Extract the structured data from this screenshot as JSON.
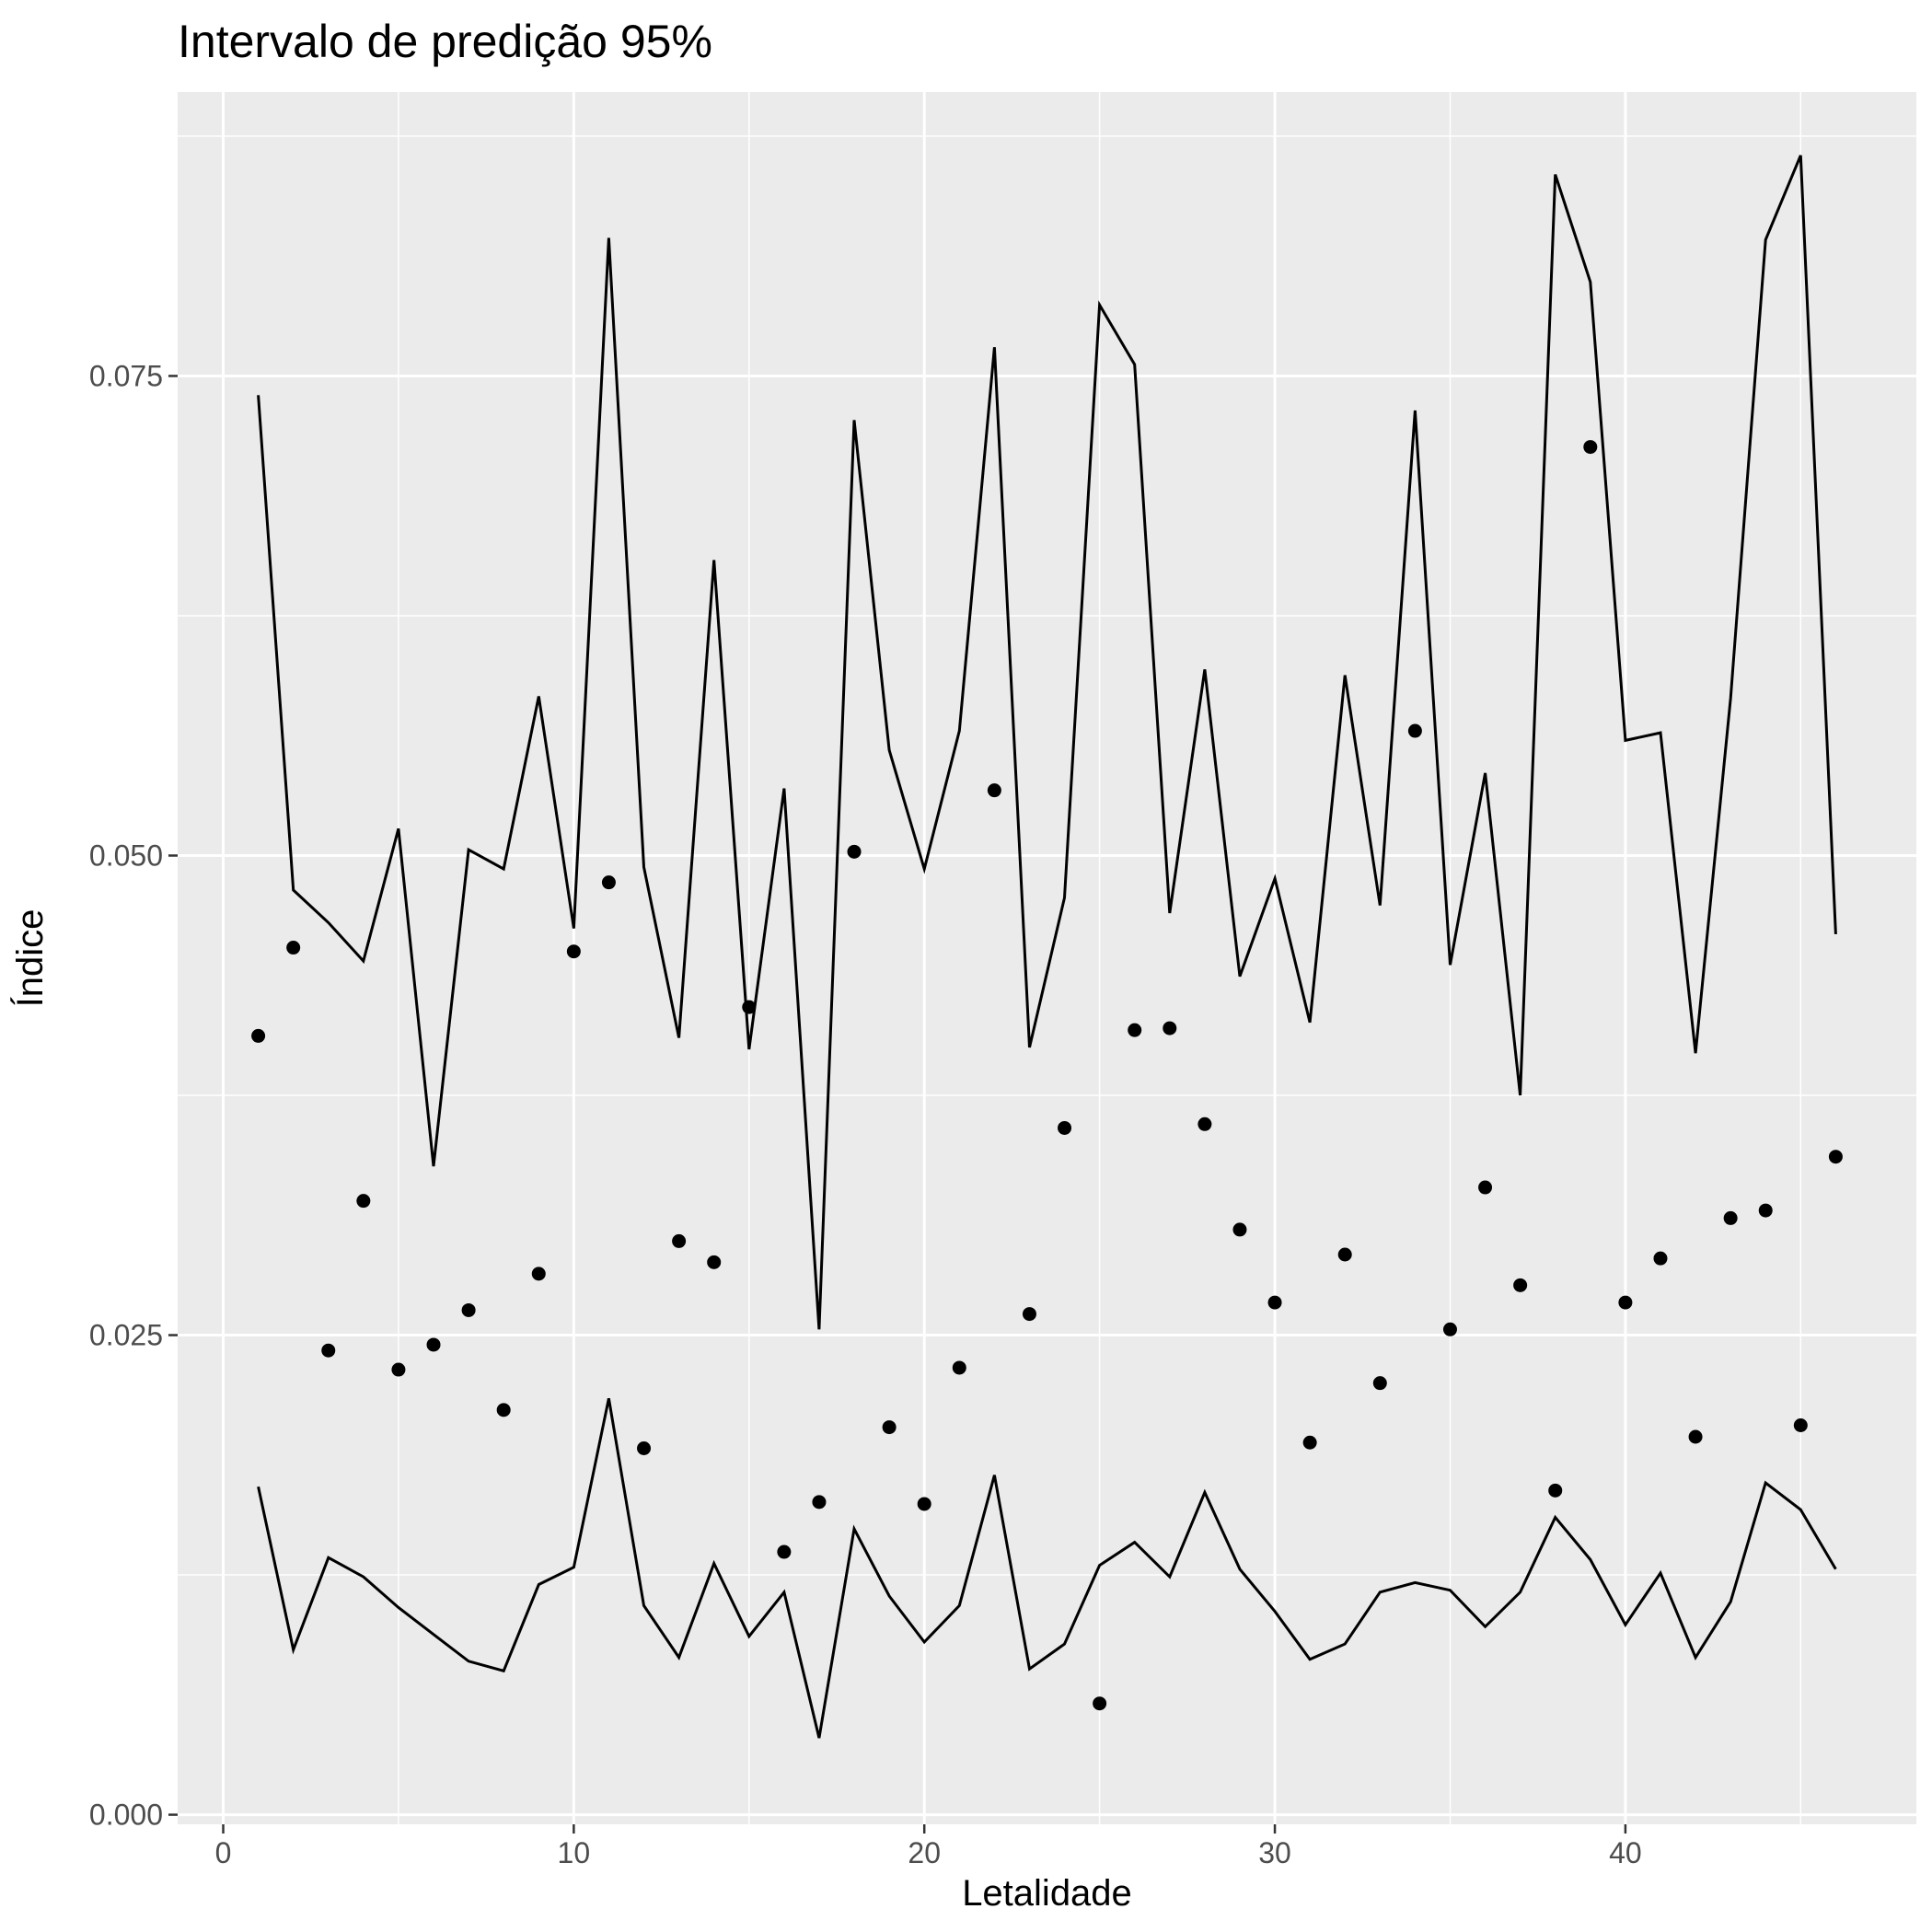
{
  "chart_data": {
    "type": "scatter",
    "title": "Intervalo de predição 95%",
    "xlabel": "Letalidade",
    "ylabel": "Índice",
    "xlim": [
      -1.3,
      48.3
    ],
    "ylim": [
      -0.0005,
      0.0898
    ],
    "x_ticks": [
      0,
      10,
      20,
      30,
      40
    ],
    "x_tick_labels": [
      "0",
      "10",
      "20",
      "30",
      "40"
    ],
    "y_ticks": [
      0,
      0.025,
      0.05,
      0.075
    ],
    "y_tick_labels": [
      "0.000",
      "0.025",
      "0.050",
      "0.075"
    ],
    "grid": true,
    "background": "#ebebeb",
    "series": [
      {
        "kind": "points",
        "color": "#000000",
        "x": [
          1,
          2,
          3,
          4,
          5,
          6,
          7,
          8,
          9,
          10,
          11,
          12,
          13,
          14,
          15,
          16,
          17,
          18,
          19,
          20,
          21,
          22,
          23,
          24,
          25,
          26,
          27,
          28,
          29,
          30,
          31,
          32,
          33,
          34,
          35,
          36,
          37,
          38,
          39,
          40,
          41,
          42,
          43,
          44,
          45,
          46
        ],
        "y": [
          0.0406,
          0.0452,
          0.0242,
          0.032,
          0.0232,
          0.0245,
          0.0263,
          0.0211,
          0.0282,
          0.045,
          0.0486,
          0.0191,
          0.0299,
          0.0288,
          0.0421,
          0.0137,
          0.0163,
          0.0502,
          0.0202,
          0.0162,
          0.0233,
          0.0534,
          0.0261,
          0.0358,
          0.0058,
          0.0409,
          0.041,
          0.036,
          0.0305,
          0.0267,
          0.0194,
          0.0292,
          0.0225,
          0.0565,
          0.0253,
          0.0327,
          0.0276,
          0.0169,
          0.0713,
          0.0267,
          0.029,
          0.0197,
          0.0311,
          0.0315,
          0.0203,
          0.0343
        ]
      },
      {
        "kind": "line",
        "color": "#000000",
        "x": [
          1,
          2,
          3,
          4,
          5,
          6,
          7,
          8,
          9,
          10,
          11,
          12,
          13,
          14,
          15,
          16,
          17,
          18,
          19,
          20,
          21,
          22,
          23,
          24,
          25,
          26,
          27,
          28,
          29,
          30,
          31,
          32,
          33,
          34,
          35,
          36,
          37,
          38,
          39,
          40,
          41,
          42,
          43,
          44,
          45,
          46
        ],
        "y": [
          0.074,
          0.0482,
          0.0465,
          0.0445,
          0.0514,
          0.0338,
          0.0503,
          0.0493,
          0.0583,
          0.0462,
          0.0822,
          0.0494,
          0.0405,
          0.0654,
          0.0399,
          0.0535,
          0.0253,
          0.0727,
          0.0555,
          0.0493,
          0.0565,
          0.0765,
          0.04,
          0.0478,
          0.0787,
          0.0756,
          0.047,
          0.0597,
          0.0437,
          0.0488,
          0.0413,
          0.0594,
          0.0474,
          0.0732,
          0.0443,
          0.0543,
          0.0375,
          0.0855,
          0.0799,
          0.056,
          0.0564,
          0.0397,
          0.0582,
          0.0821,
          0.0865,
          0.0459
        ]
      },
      {
        "kind": "line",
        "color": "#000000",
        "x": [
          1,
          2,
          3,
          4,
          5,
          6,
          7,
          8,
          9,
          10,
          11,
          12,
          13,
          14,
          15,
          16,
          17,
          18,
          19,
          20,
          21,
          22,
          23,
          24,
          25,
          26,
          27,
          28,
          29,
          30,
          31,
          32,
          33,
          34,
          35,
          36,
          37,
          38,
          39,
          40,
          41,
          42,
          43,
          44,
          45,
          46
        ],
        "y": [
          0.0171,
          0.0086,
          0.0134,
          0.0124,
          0.0108,
          0.0094,
          0.008,
          0.0075,
          0.012,
          0.0129,
          0.0217,
          0.0109,
          0.0082,
          0.0131,
          0.0093,
          0.0116,
          0.004,
          0.0149,
          0.0114,
          0.009,
          0.0109,
          0.0177,
          0.0076,
          0.0089,
          0.013,
          0.0142,
          0.0124,
          0.0168,
          0.0128,
          0.0106,
          0.0081,
          0.0089,
          0.0116,
          0.0121,
          0.0117,
          0.0098,
          0.0116,
          0.0155,
          0.0133,
          0.0099,
          0.0126,
          0.0082,
          0.0111,
          0.0173,
          0.0159,
          0.0128
        ]
      }
    ]
  }
}
